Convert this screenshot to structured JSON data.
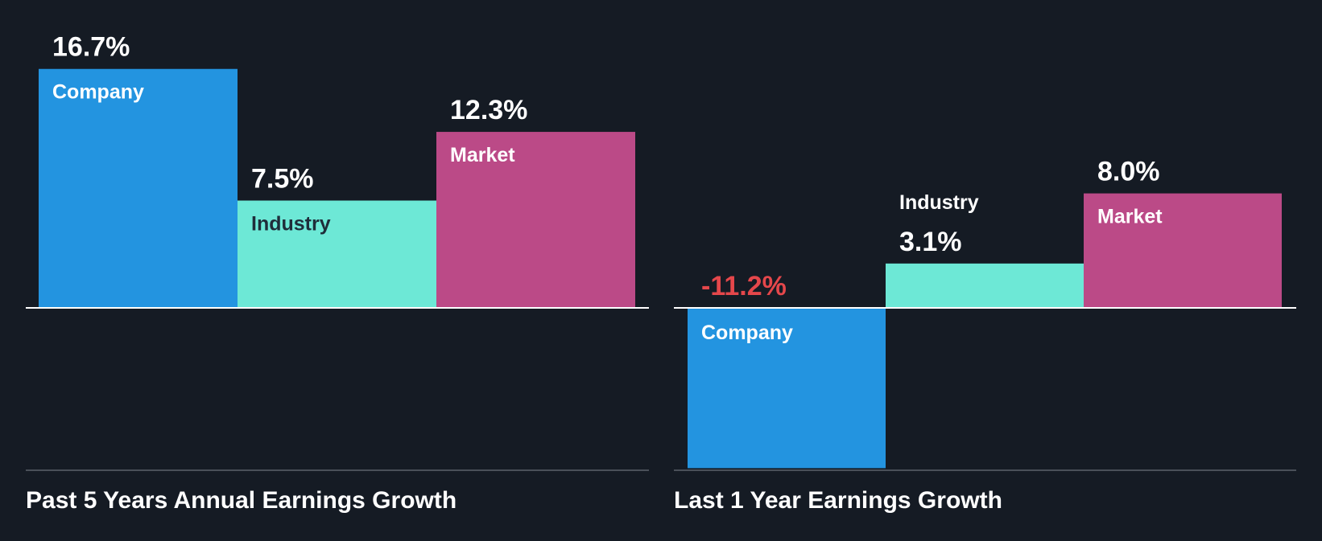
{
  "colors": {
    "background": "#151b24",
    "company": "#2394e0",
    "industry": "#6de8d6",
    "market": "#bb4a87",
    "negative_value": "#e5474b",
    "positive_value": "#ffffff",
    "baseline": "#ffffff",
    "divider": "#4a5059"
  },
  "chart_data": [
    {
      "type": "bar",
      "title": "Past 5 Years Annual Earnings Growth",
      "categories": [
        "Company",
        "Industry",
        "Market"
      ],
      "values": [
        16.7,
        7.5,
        12.3
      ],
      "value_labels": [
        "16.7%",
        "7.5%",
        "12.3%"
      ],
      "unit": "%",
      "grid": false
    },
    {
      "type": "bar",
      "title": "Last 1 Year Earnings Growth",
      "categories": [
        "Company",
        "Industry",
        "Market"
      ],
      "values": [
        -11.2,
        3.1,
        8.0
      ],
      "value_labels": [
        "-11.2%",
        "3.1%",
        "8.0%"
      ],
      "unit": "%",
      "grid": false
    }
  ]
}
